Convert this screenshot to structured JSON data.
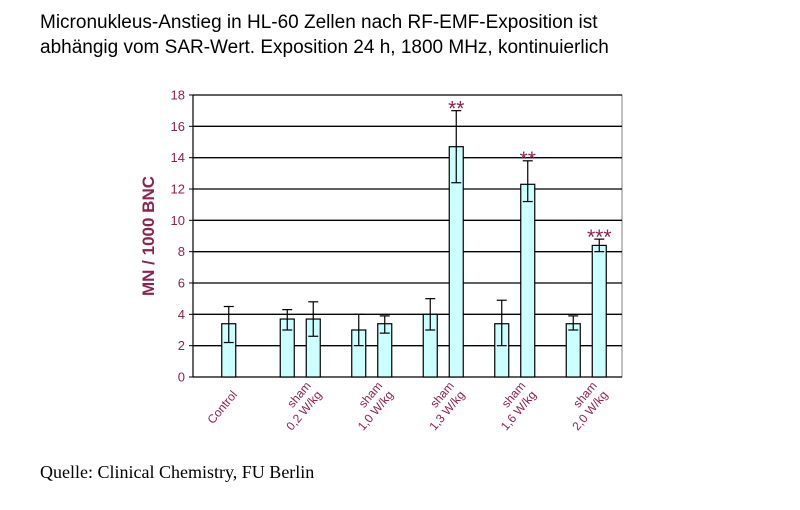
{
  "title_lines": [
    "Micronukleus-Anstieg in HL-60 Zellen nach RF-EMF-Exposition ist",
    "abhängig vom SAR-Wert. Exposition 24 h, 1800 MHz, kontinuierlich"
  ],
  "source": "Quelle: Clinical Chemistry, FU Berlin",
  "colors": {
    "bar": "#ccffff",
    "text": "#8b2252",
    "grid": "#000000"
  },
  "chart_data": {
    "type": "bar",
    "ylabel": "MN / 1000 BNC",
    "ylim": [
      0,
      18
    ],
    "yticks": [
      0,
      2,
      4,
      6,
      8,
      10,
      12,
      14,
      16,
      18
    ],
    "grid": true,
    "groups": [
      {
        "label_lines": [
          "Control"
        ],
        "bars": [
          {
            "value": 3.4,
            "err_low": 2.2,
            "err_high": 4.5,
            "sig": ""
          }
        ]
      },
      {
        "label_lines": [
          "sham",
          "0,2 W/kg"
        ],
        "bars": [
          {
            "value": 3.7,
            "err_low": 3.0,
            "err_high": 4.3,
            "sig": ""
          },
          {
            "value": 3.7,
            "err_low": 2.6,
            "err_high": 4.8,
            "sig": ""
          }
        ]
      },
      {
        "label_lines": [
          "sham",
          "1,0 W/kg"
        ],
        "bars": [
          {
            "value": 3.0,
            "err_low": 2.0,
            "err_high": 4.0,
            "sig": ""
          },
          {
            "value": 3.4,
            "err_low": 2.8,
            "err_high": 3.9,
            "sig": ""
          }
        ]
      },
      {
        "label_lines": [
          "sham",
          "1,3 W/kg"
        ],
        "bars": [
          {
            "value": 4.0,
            "err_low": 3.0,
            "err_high": 5.0,
            "sig": ""
          },
          {
            "value": 14.7,
            "err_low": 12.4,
            "err_high": 17.0,
            "sig": "**"
          }
        ]
      },
      {
        "label_lines": [
          "sham",
          "1,6 W/kg"
        ],
        "bars": [
          {
            "value": 3.4,
            "err_low": 2.0,
            "err_high": 4.9,
            "sig": ""
          },
          {
            "value": 12.3,
            "err_low": 11.2,
            "err_high": 13.8,
            "sig": "**"
          }
        ]
      },
      {
        "label_lines": [
          "sham",
          "2,0 W/kg"
        ],
        "bars": [
          {
            "value": 3.4,
            "err_low": 3.0,
            "err_high": 3.9,
            "sig": ""
          },
          {
            "value": 8.4,
            "err_low": 8.0,
            "err_high": 8.8,
            "sig": "***"
          }
        ]
      }
    ]
  }
}
